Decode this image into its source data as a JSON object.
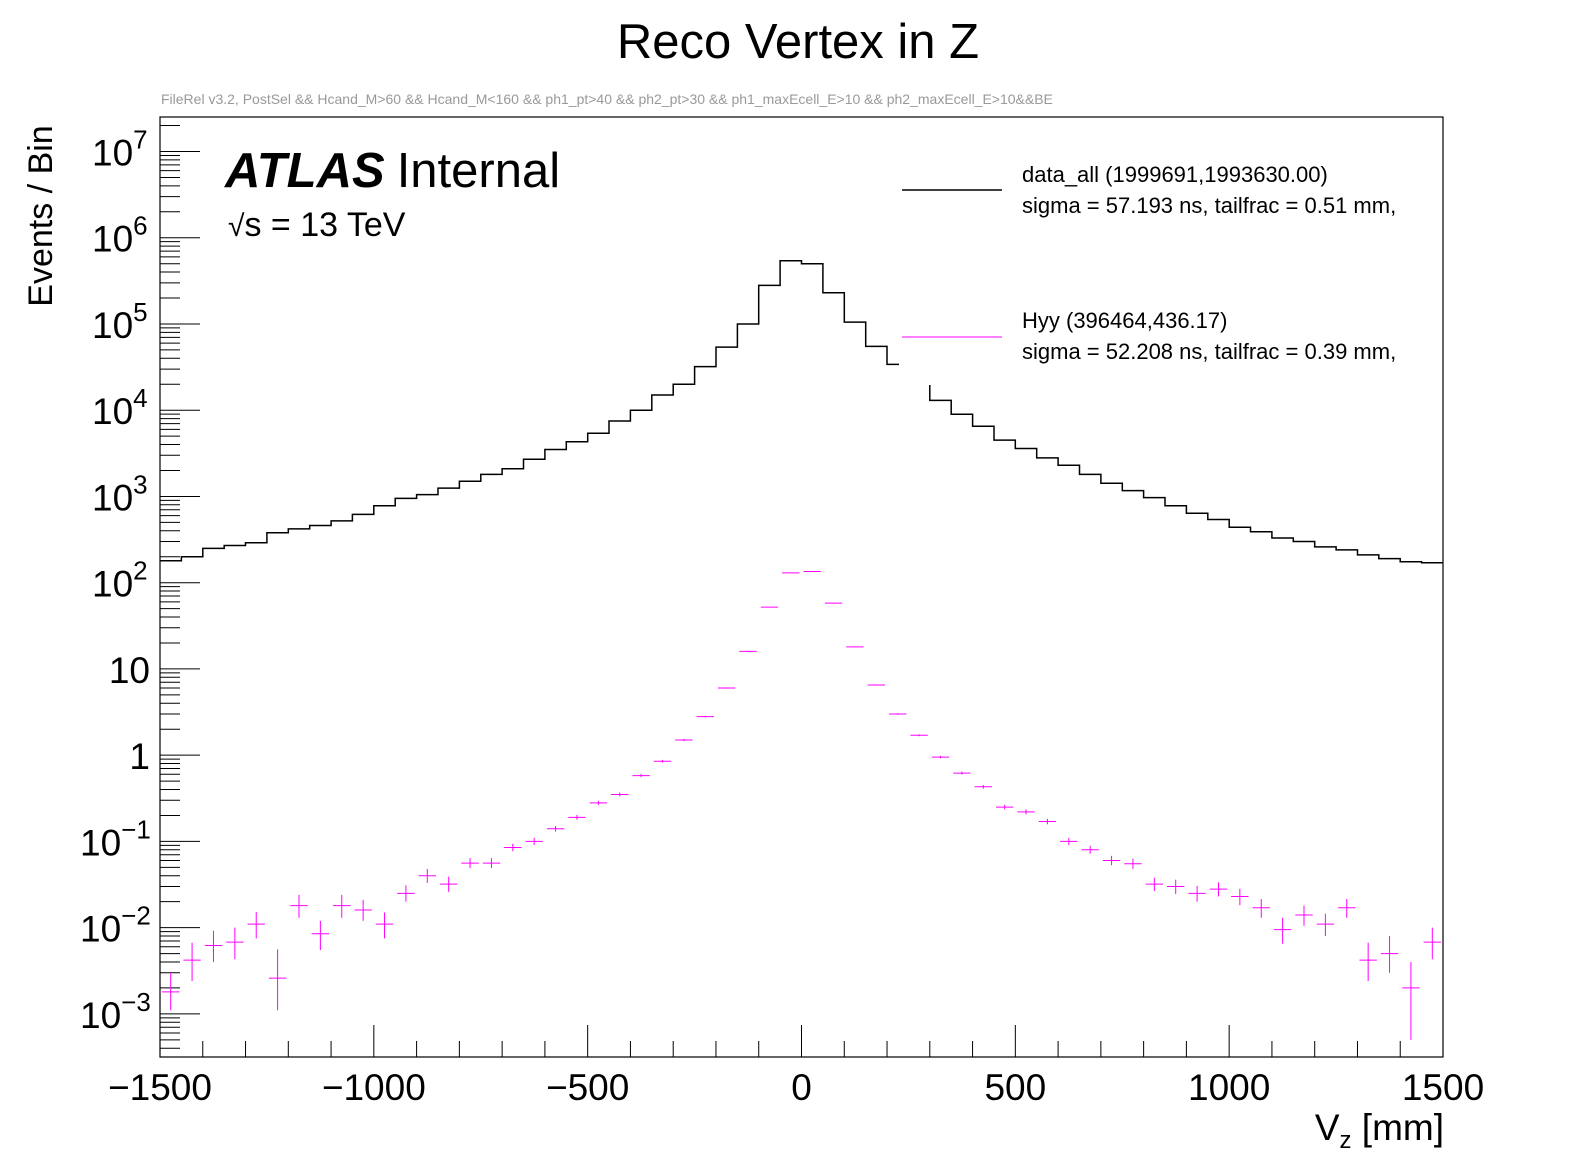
{
  "chart_data": {
    "type": "histogram",
    "title": "Reco Vertex in Z",
    "subtitle": "FileRel v3.2, PostSel && Hcand_M>60 && Hcand_M<160 && ph1_pt>40 && ph2_pt>30 && ph1_maxEcell_E>10 && ph2_maxEcell_E>10&&BE",
    "xlabel_main": "V",
    "xlabel_sub": "z",
    "xlabel_unit": " [mm]",
    "ylabel": "Events / Bin",
    "xlim": [
      -1500,
      1500
    ],
    "ylim_log10": [
      -3.5,
      7.4
    ],
    "x_ticks": [
      {
        "value": -1500,
        "label": "−1500"
      },
      {
        "value": -1000,
        "label": "−1000"
      },
      {
        "value": -500,
        "label": "−500"
      },
      {
        "value": 0,
        "label": "0"
      },
      {
        "value": 500,
        "label": "500"
      },
      {
        "value": 1000,
        "label": "1000"
      },
      {
        "value": 1500,
        "label": "1500"
      }
    ],
    "y_ticks": [
      {
        "exp": -3,
        "base": "10",
        "sup": "−3"
      },
      {
        "exp": -2,
        "base": "10",
        "sup": "−2"
      },
      {
        "exp": -1,
        "base": "10",
        "sup": "−1"
      },
      {
        "exp": 0,
        "base": "1",
        "sup": ""
      },
      {
        "exp": 1,
        "base": "10",
        "sup": ""
      },
      {
        "exp": 2,
        "base": "10",
        "sup": "2"
      },
      {
        "exp": 3,
        "base": "10",
        "sup": "3"
      },
      {
        "exp": 4,
        "base": "10",
        "sup": "4"
      },
      {
        "exp": 5,
        "base": "10",
        "sup": "5"
      },
      {
        "exp": 6,
        "base": "10",
        "sup": "6"
      },
      {
        "exp": 7,
        "base": "10",
        "sup": "7"
      }
    ],
    "bin_width": 50,
    "bin_start": -1500,
    "series": [
      {
        "name": "data_all",
        "style": "step",
        "color": "#000000",
        "values": [
          180,
          200,
          250,
          270,
          290,
          380,
          420,
          460,
          520,
          620,
          780,
          950,
          1050,
          1250,
          1500,
          1800,
          2100,
          2700,
          3500,
          4300,
          5400,
          7500,
          10000,
          15000,
          20000,
          32000,
          54000,
          100000,
          280000,
          540000,
          500000,
          230000,
          105000,
          55000,
          34000,
          20000,
          13000,
          9000,
          6500,
          4500,
          3600,
          2800,
          2300,
          1800,
          1420,
          1170,
          970,
          780,
          640,
          540,
          440,
          390,
          330,
          300,
          260,
          240,
          210,
          190,
          175,
          170
        ]
      },
      {
        "name": "Hyy",
        "style": "errorbar",
        "color": "#ff00ff",
        "values": [
          0.0018,
          0.0042,
          0.0062,
          0.0068,
          0.011,
          0.0026,
          0.018,
          0.0085,
          0.018,
          0.016,
          0.011,
          0.025,
          0.04,
          0.032,
          0.056,
          0.056,
          0.085,
          0.1,
          0.14,
          0.19,
          0.28,
          0.35,
          0.58,
          0.85,
          1.5,
          2.8,
          6.0,
          16,
          52,
          130,
          135,
          58,
          18,
          6.5,
          3.0,
          1.7,
          0.95,
          0.62,
          0.43,
          0.25,
          0.22,
          0.17,
          0.1,
          0.08,
          0.06,
          0.055,
          0.032,
          0.03,
          0.025,
          0.028,
          0.023,
          0.017,
          0.0095,
          0.014,
          0.011,
          0.017,
          0.0042,
          0.005,
          0.002,
          0.0068
        ],
        "err_low": [
          0.0007,
          0.0018,
          0.0022,
          0.0025,
          0.0035,
          0.0015,
          0.005,
          0.003,
          0.005,
          0.004,
          0.0035,
          0.005,
          0.007,
          0.006,
          0.007,
          0.007,
          0.008,
          0.009,
          0.01,
          0.012,
          0.015,
          0.018,
          0.025,
          0.03,
          0.04,
          0.06,
          0.1,
          0.2,
          0.4,
          0.8,
          0.8,
          0.4,
          0.2,
          0.1,
          0.06,
          0.04,
          0.03,
          0.025,
          0.02,
          0.015,
          0.014,
          0.012,
          0.009,
          0.008,
          0.007,
          0.007,
          0.0055,
          0.0055,
          0.005,
          0.005,
          0.0048,
          0.004,
          0.003,
          0.0035,
          0.003,
          0.004,
          0.0018,
          0.002,
          0.0015,
          0.0025
        ],
        "err_high": [
          0.0012,
          0.0025,
          0.003,
          0.0032,
          0.0042,
          0.003,
          0.006,
          0.0035,
          0.006,
          0.005,
          0.004,
          0.006,
          0.008,
          0.007,
          0.008,
          0.008,
          0.009,
          0.01,
          0.011,
          0.013,
          0.016,
          0.019,
          0.026,
          0.032,
          0.045,
          0.065,
          0.11,
          0.22,
          0.45,
          0.9,
          0.9,
          0.45,
          0.22,
          0.11,
          0.065,
          0.045,
          0.032,
          0.026,
          0.021,
          0.016,
          0.015,
          0.013,
          0.01,
          0.009,
          0.008,
          0.008,
          0.006,
          0.006,
          0.0055,
          0.0055,
          0.0052,
          0.0045,
          0.0035,
          0.004,
          0.0035,
          0.0045,
          0.0025,
          0.003,
          0.002,
          0.0032
        ]
      }
    ],
    "legend": {
      "position": "top-right",
      "entries": [
        {
          "line1": "data_all  (1999691,1993630.00)",
          "line2": "sigma = 57.193 ns, tailfrac = 0.51 mm,",
          "color": "#000000"
        },
        {
          "line1": "Hyy  (396464,436.17)",
          "line2": "sigma = 52.208 ns, tailfrac = 0.39 mm,",
          "color": "#ff00ff"
        }
      ]
    },
    "annotations": {
      "experiment": "ATLAS",
      "status": "Internal",
      "energy_sqrt": "√",
      "energy_s": "s",
      "energy_rest": " = 13 TeV"
    }
  }
}
